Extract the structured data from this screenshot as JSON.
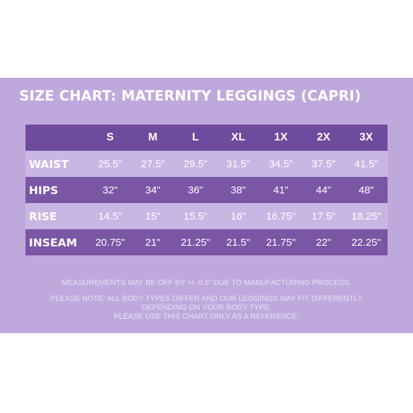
{
  "title": "SIZE CHART: MATERNITY LEGGINGS (CAPRI)",
  "sizes": [
    "S",
    "M",
    "L",
    "XL",
    "1X",
    "2X",
    "3X"
  ],
  "rows": [
    {
      "label": "WAIST",
      "values": [
        "25.5\"",
        "27.5\"",
        "29.5\"",
        "31.5\"",
        "34.5\"",
        "37.5\"",
        "41.5\""
      ]
    },
    {
      "label": "HIPS",
      "values": [
        "32\"",
        "34\"",
        "36\"",
        "38\"",
        "41\"",
        "44\"",
        "48\""
      ]
    },
    {
      "label": "RISE",
      "values": [
        "14.5\"",
        "15\"",
        "15.5\"",
        "16\"",
        "16.75\"",
        "17.5\"",
        "18.25\""
      ]
    },
    {
      "label": "INSEAM",
      "values": [
        "20.75\"",
        "21\"",
        "21.25\"",
        "21.5\"",
        "21.75\"",
        "22\"",
        "22.25\""
      ]
    }
  ],
  "notes": {
    "line1": "MEASUREMENTS MAY BE OFF BY +/- 0.5\" DUE TO MANUFACTURING PROCESS.",
    "line2": "PLEASE NOTE: ALL BODY TYPES DIFFER AND OUR LEGGINGS MAY FIT DIFFERENTLY",
    "line3": "DEPENDING ON YOUR BODY TYPE.",
    "line4": "PLEASE USE THIS CHART ONLY AS A REFERENCE."
  },
  "colors": {
    "panel": "#bfa9dc",
    "dark_row": "#7b56a5",
    "light_row": "#c9b6e3"
  }
}
